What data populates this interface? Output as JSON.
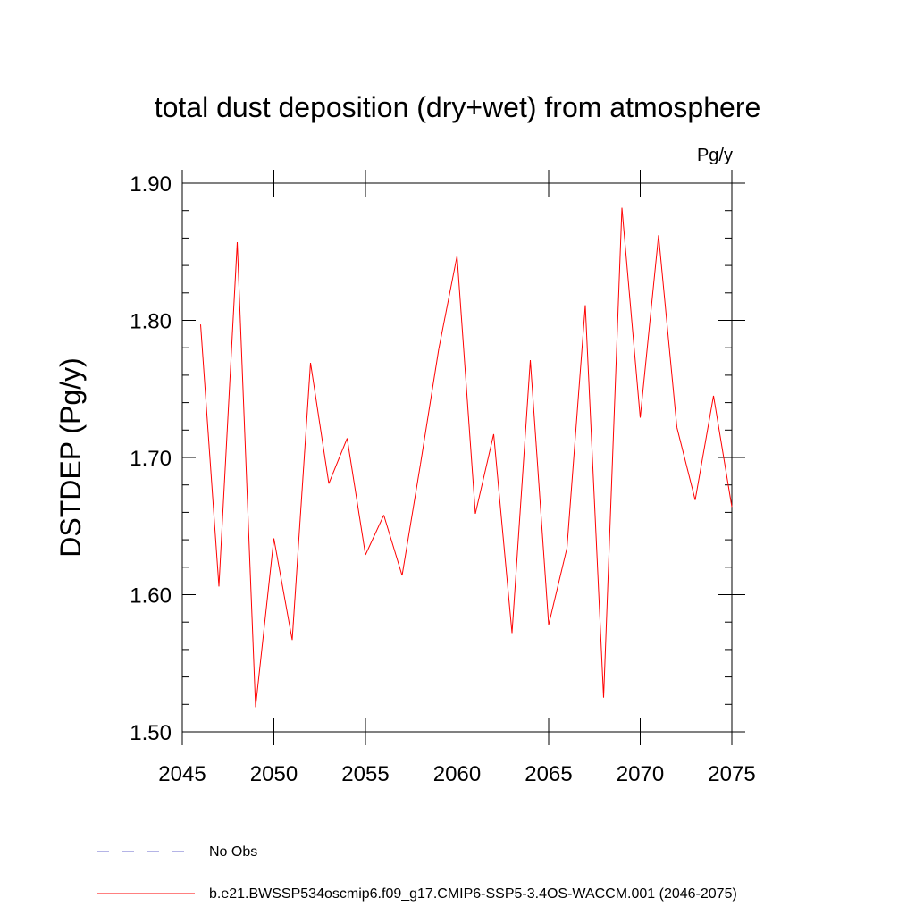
{
  "chart_data": {
    "type": "line",
    "title": "total dust deposition (dry+wet) from atmosphere",
    "units_label": "Pg/y",
    "xlabel": "",
    "ylabel": "DSTDEP  (Pg/y)",
    "xlim": [
      2045,
      2075
    ],
    "ylim": [
      1.5,
      1.9
    ],
    "x_ticks": [
      2045,
      2050,
      2055,
      2060,
      2065,
      2070,
      2075
    ],
    "x_tick_labels": [
      "2045",
      "2050",
      "2055",
      "2060",
      "2065",
      "2070",
      "2075"
    ],
    "y_ticks": [
      1.5,
      1.6,
      1.7,
      1.8,
      1.9
    ],
    "y_tick_labels": [
      "1.50",
      "1.60",
      "1.70",
      "1.80",
      "1.90"
    ],
    "grid": false,
    "series": [
      {
        "name": "b.e21.BWSSP534oscmip6.f09_g17.CMIP6-SSP5-3.4OS-WACCM.001 (2046-2075)",
        "color": "#ff0000",
        "x": [
          2046,
          2047,
          2048,
          2049,
          2050,
          2051,
          2052,
          2053,
          2054,
          2055,
          2056,
          2057,
          2058,
          2059,
          2060,
          2061,
          2062,
          2063,
          2064,
          2065,
          2066,
          2067,
          2068,
          2069,
          2070,
          2071,
          2072,
          2073,
          2074,
          2075
        ],
        "values": [
          1.797,
          1.606,
          1.857,
          1.518,
          1.641,
          1.567,
          1.769,
          1.681,
          1.714,
          1.629,
          1.658,
          1.614,
          1.695,
          1.779,
          1.847,
          1.659,
          1.717,
          1.572,
          1.771,
          1.578,
          1.634,
          1.811,
          1.525,
          1.882,
          1.729,
          1.862,
          1.722,
          1.669,
          1.745,
          1.664
        ]
      }
    ],
    "legend": [
      {
        "label": "No Obs",
        "style": "dashed",
        "color": "#6a6acd"
      },
      {
        "label": "b.e21.BWSSP534oscmip6.f09_g17.CMIP6-SSP5-3.4OS-WACCM.001 (2046-2075)",
        "style": "solid",
        "color": "#ff0000"
      }
    ],
    "legend_position": "bottom-left"
  }
}
